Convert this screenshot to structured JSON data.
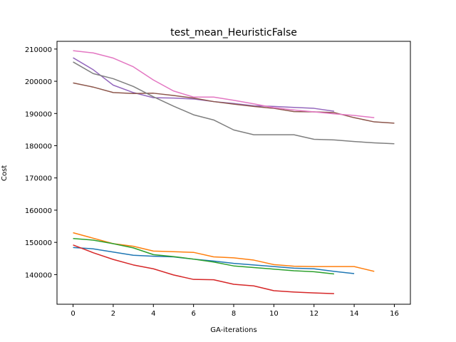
{
  "chart_data": {
    "type": "line",
    "title": "test_mean_HeuristicFalse",
    "xlabel": "GA-iterations",
    "ylabel": "Cost",
    "xlim": [
      -0.8,
      16.8
    ],
    "ylim": [
      130800,
      212400
    ],
    "xticks": [
      0,
      2,
      4,
      6,
      8,
      10,
      12,
      14,
      16
    ],
    "yticks": [
      140000,
      150000,
      160000,
      170000,
      180000,
      190000,
      200000,
      210000
    ],
    "grid": false,
    "series": [
      {
        "color": "#1f77b4",
        "x": [
          0,
          1,
          2,
          3,
          4,
          5,
          6,
          7,
          8,
          9,
          10,
          11,
          12,
          13,
          14
        ],
        "values": [
          148400,
          148000,
          147000,
          146000,
          145700,
          145500,
          144800,
          144200,
          143500,
          143000,
          142500,
          142000,
          141800,
          141000,
          140300
        ]
      },
      {
        "color": "#ff7f0e",
        "x": [
          0,
          1,
          2,
          3,
          4,
          5,
          6,
          7,
          8,
          9,
          10,
          11,
          12,
          13,
          14,
          15
        ],
        "values": [
          153000,
          151300,
          149600,
          148800,
          147300,
          147100,
          146900,
          145500,
          145200,
          144500,
          143100,
          142600,
          142500,
          142500,
          142500,
          141000
        ]
      },
      {
        "color": "#2ca02c",
        "x": [
          0,
          1,
          2,
          3,
          4,
          5,
          6,
          7,
          8,
          9,
          10,
          11,
          12,
          13
        ],
        "values": [
          151200,
          150700,
          149600,
          148300,
          146200,
          145600,
          144800,
          143900,
          142700,
          142200,
          141700,
          141200,
          140900,
          140200
        ]
      },
      {
        "color": "#d62728",
        "x": [
          0,
          1,
          2,
          3,
          4,
          5,
          6,
          7,
          8,
          9,
          10,
          11,
          12,
          13
        ],
        "values": [
          149200,
          146800,
          144700,
          143000,
          141800,
          139900,
          138500,
          138400,
          137000,
          136500,
          135000,
          134600,
          134300,
          134100
        ]
      },
      {
        "color": "#9467bd",
        "x": [
          0,
          1,
          2,
          3,
          4,
          5,
          6,
          7,
          8,
          9,
          10,
          11,
          12,
          13
        ],
        "values": [
          207300,
          203600,
          198800,
          196500,
          194900,
          194800,
          194500,
          193700,
          193100,
          192400,
          192200,
          191900,
          191600,
          190700
        ]
      },
      {
        "color": "#8c564b",
        "x": [
          0,
          1,
          2,
          3,
          4,
          5,
          6,
          7,
          8,
          9,
          10,
          11,
          12,
          13,
          14,
          15,
          16
        ],
        "values": [
          199500,
          198200,
          196500,
          196200,
          196300,
          195600,
          194800,
          193700,
          192900,
          192200,
          191600,
          190600,
          190500,
          190300,
          188700,
          187400,
          187000
        ]
      },
      {
        "color": "#e377c2",
        "x": [
          0,
          1,
          2,
          3,
          4,
          5,
          6,
          7,
          8,
          9,
          10,
          11,
          12,
          13,
          14,
          15
        ],
        "values": [
          209500,
          208800,
          207200,
          204500,
          200400,
          197000,
          195100,
          195100,
          194100,
          193000,
          191800,
          191100,
          190500,
          189900,
          189400,
          188700
        ]
      },
      {
        "color": "#7f7f7f",
        "x": [
          0,
          1,
          2,
          3,
          4,
          5,
          6,
          7,
          8,
          9,
          10,
          11,
          12,
          13,
          14,
          15,
          16
        ],
        "values": [
          206000,
          202400,
          200800,
          198400,
          195200,
          192300,
          189600,
          188000,
          184900,
          183400,
          183400,
          183400,
          182000,
          181800,
          181300,
          180900,
          180600
        ]
      }
    ]
  }
}
